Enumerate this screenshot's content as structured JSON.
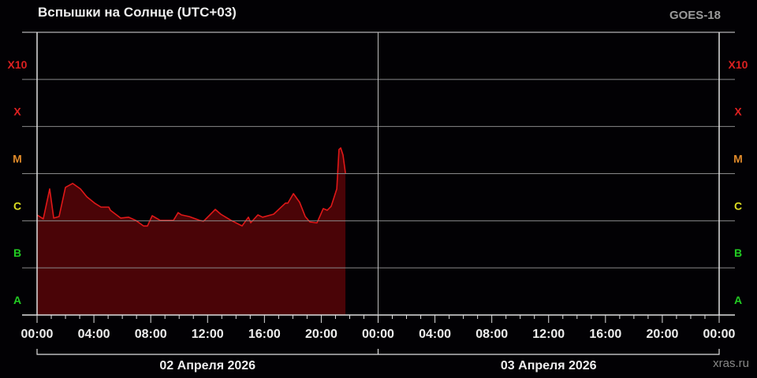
{
  "title": "Вспышки на Солнце (UTC+03)",
  "source": "GOES-18",
  "watermark": "xras.ru",
  "chart_data": {
    "type": "area",
    "title": "Вспышки на Солнце (UTC+03)",
    "xlabel": "",
    "ylabel": "",
    "y_scale": "log",
    "y_units": "W/m²",
    "ylim": [
      1e-08,
      0.01
    ],
    "xlim_hours": [
      0,
      48
    ],
    "grid": true,
    "colors": {
      "line": "#e01818",
      "fill": "#4a0407",
      "grid": "#8a8a8a",
      "axis": "#e0e0e0"
    },
    "class_levels": [
      {
        "label": "A",
        "flux": 1e-08,
        "color": "#22cc22"
      },
      {
        "label": "B",
        "flux": 1e-07,
        "color": "#22cc22"
      },
      {
        "label": "C",
        "flux": 1e-06,
        "color": "#dddd22"
      },
      {
        "label": "M",
        "flux": 1e-05,
        "color": "#e08a2a"
      },
      {
        "label": "X",
        "flux": 0.0001,
        "color": "#dd2020"
      },
      {
        "label": "X10",
        "flux": 0.001,
        "color": "#dd2020"
      }
    ],
    "x_tick_labels": [
      "00:00",
      "04:00",
      "08:00",
      "12:00",
      "16:00",
      "20:00",
      "00:00",
      "04:00",
      "08:00",
      "12:00",
      "16:00",
      "20:00",
      "00:00"
    ],
    "dates": [
      "02 Апреля 2026",
      "03 Апреля 2026"
    ],
    "series": [
      {
        "hours": [
          0,
          0.44,
          0.89,
          1.17,
          1.55,
          2.0,
          2.5,
          3.05,
          3.5,
          4.05,
          4.5,
          5.05,
          5.16,
          5.88,
          6.44,
          6.94,
          7.49,
          7.77,
          8.1,
          8.66,
          9.6,
          9.93,
          10.16,
          10.71,
          11.43,
          11.71,
          11.82,
          12.54,
          12.93,
          13.65,
          14.43,
          14.87,
          15.04,
          15.54,
          15.87,
          16.65,
          17.48,
          17.65,
          18.04,
          18.48,
          18.87,
          19.2,
          19.7,
          20.14,
          20.42,
          20.7,
          21.09,
          21.25,
          21.37,
          21.53,
          21.7
        ],
        "flux": [
          1.33e-06,
          1.1e-06,
          4.74e-06,
          1.14e-06,
          1.23e-06,
          5.12e-06,
          6.21e-06,
          4.74e-06,
          3.22e-06,
          2.37e-06,
          1.95e-06,
          1.95e-06,
          1.67e-06,
          1.14e-06,
          1.19e-06,
          1.02e-06,
          7.76e-07,
          7.76e-07,
          1.28e-06,
          1.02e-06,
          1.02e-06,
          1.49e-06,
          1.33e-06,
          1.23e-06,
          1.02e-06,
          9.8e-07,
          1.05e-06,
          1.74e-06,
          1.38e-06,
          1.02e-06,
          7.76e-07,
          1.19e-06,
          9.05e-07,
          1.33e-06,
          1.19e-06,
          1.38e-06,
          2.37e-06,
          2.37e-06,
          3.76e-06,
          2.46e-06,
          1.23e-06,
          9.4e-07,
          9.05e-07,
          1.81e-06,
          1.67e-06,
          2.03e-06,
          4.74e-06,
          3.25e-05,
          3.51e-05,
          2.48e-05,
          1.02e-05
        ]
      }
    ]
  }
}
